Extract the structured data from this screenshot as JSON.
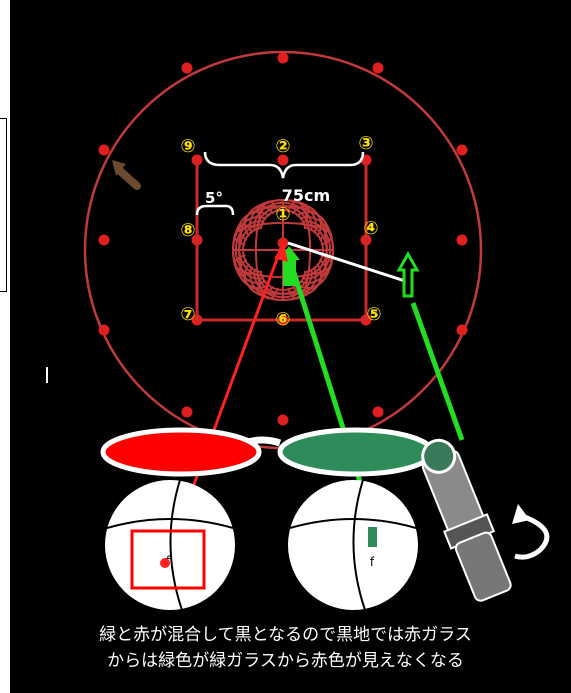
{
  "labels": {
    "p1": "①",
    "p2": "②",
    "p3": "③",
    "p4": "④",
    "p5": "⑤",
    "p6": "⑥",
    "p7": "⑦",
    "p8": "⑧",
    "p9": "⑨",
    "distance": "75cm",
    "angle": "5°"
  },
  "caption": {
    "line1": "緑と赤が混合して黒となるので黒地では赤ガラス",
    "line2": "からは緑色が緑ガラスから赤色が見えなくなる"
  },
  "colors": {
    "background": "#000000",
    "grid_red": "#c0393b",
    "dot_red": "#e02020",
    "label_yellow": "#ffe000",
    "red_lens": "#ff0000",
    "green_lens": "#2e8b5a",
    "green_arrow": "#22dd22",
    "white_line": "#ffffff",
    "flashlight_gray": "#777777"
  },
  "icons": {
    "rotation": "curved-arrow-icon",
    "grid_handle": "brown-arrow-icon"
  }
}
